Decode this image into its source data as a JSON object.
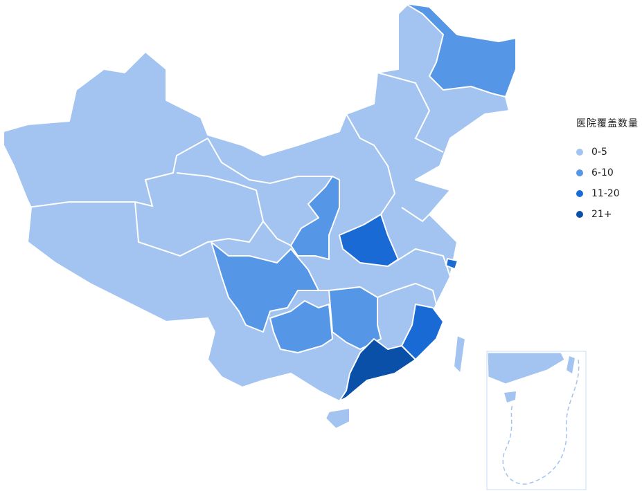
{
  "legend": {
    "title": "医院覆盖数量",
    "items": [
      {
        "label": "0-5",
        "color": "#a3c4f0"
      },
      {
        "label": "6-10",
        "color": "#5597e6"
      },
      {
        "label": "11-20",
        "color": "#1a6ad6"
      },
      {
        "label": "21+",
        "color": "#0a4fa8"
      }
    ]
  },
  "regions": [
    {
      "name": "Heilongjiang",
      "range": "6-10"
    },
    {
      "name": "Shaanxi",
      "range": "6-10"
    },
    {
      "name": "Sichuan",
      "range": "6-10"
    },
    {
      "name": "Guizhou",
      "range": "6-10"
    },
    {
      "name": "Hunan",
      "range": "6-10"
    },
    {
      "name": "Henan",
      "range": "11-20"
    },
    {
      "name": "Fujian",
      "range": "11-20"
    },
    {
      "name": "Shanghai",
      "range": "11-20"
    },
    {
      "name": "Guangdong",
      "range": "21+"
    },
    {
      "name": "Other provinces",
      "range": "0-5"
    }
  ]
}
